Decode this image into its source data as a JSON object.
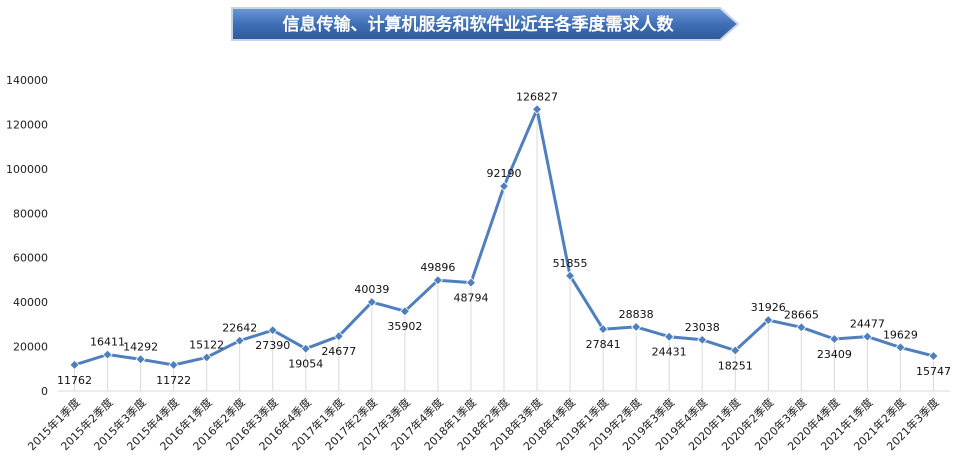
{
  "chart_data": {
    "type": "line",
    "title": "信息传输、计算机服务和软件业近年各季度需求人数",
    "xlabel": "",
    "ylabel": "",
    "ylim": [
      0,
      140000
    ],
    "yticks": [
      0,
      20000,
      40000,
      60000,
      80000,
      100000,
      120000,
      140000
    ],
    "grid": "vertical drop lines",
    "legend": "none",
    "colors": {
      "line": "#4f7fbe",
      "marker": "#4f7fbe",
      "title_bg": "#3f6fb6"
    },
    "categories": [
      "2015年1季度",
      "2015年2季度",
      "2015年3季度",
      "2015年4季度",
      "2016年1季度",
      "2016年2季度",
      "2016年3季度",
      "2016年4季度",
      "2017年1季度",
      "2017年2季度",
      "2017年3季度",
      "2017年4季度",
      "2018年1季度",
      "2018年2季度",
      "2018年3季度",
      "2018年4季度",
      "2019年1季度",
      "2019年2季度",
      "2019年3季度",
      "2019年4季度",
      "2020年1季度",
      "2020年2季度",
      "2020年3季度",
      "2020年4季度",
      "2021年1季度",
      "2021年2季度",
      "2021年3季度"
    ],
    "series": [
      {
        "values": [
          11762,
          16411,
          14292,
          11722,
          15122,
          22642,
          27390,
          19054,
          24677,
          40039,
          35902,
          49896,
          48794,
          92190,
          126827,
          51855,
          27841,
          28838,
          24431,
          23038,
          18251,
          31926,
          28665,
          23409,
          24477,
          19629,
          15747
        ]
      }
    ],
    "label_position": [
      "below",
      "above",
      "above",
      "below",
      "above",
      "above",
      "below",
      "below",
      "below",
      "above",
      "below",
      "above",
      "below",
      "above",
      "above",
      "above",
      "below",
      "above",
      "below",
      "above",
      "below",
      "above",
      "above",
      "below",
      "above",
      "above",
      "below"
    ]
  }
}
